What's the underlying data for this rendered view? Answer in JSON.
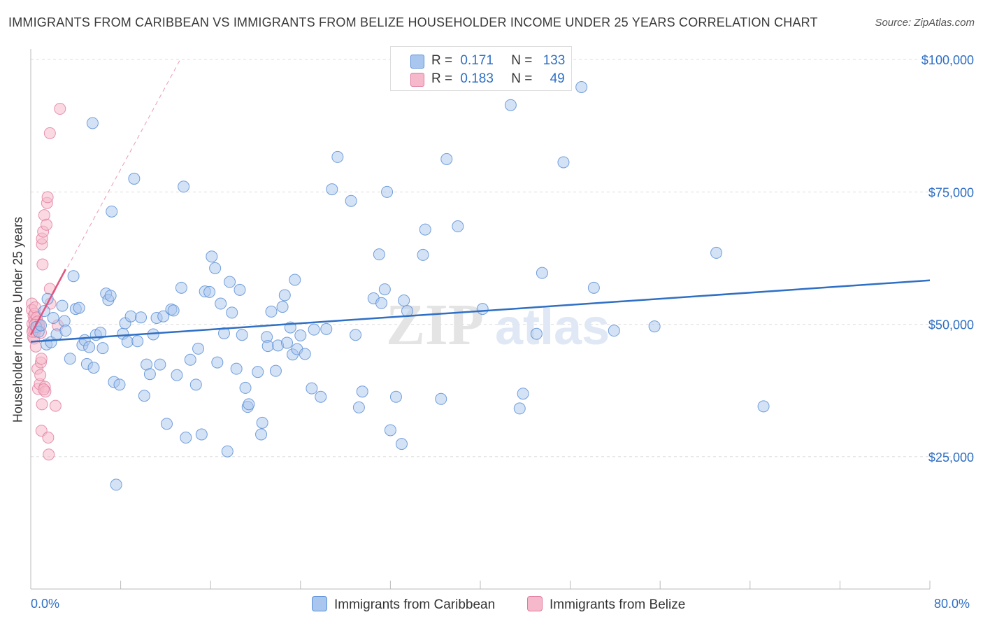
{
  "title": "IMMIGRANTS FROM CARIBBEAN VS IMMIGRANTS FROM BELIZE HOUSEHOLDER INCOME UNDER 25 YEARS CORRELATION CHART",
  "source": "Source: ZipAtlas.com",
  "watermark": "ZIPatlas",
  "legend": {
    "rows": [
      {
        "r_label": "R =",
        "r_value": "0.171",
        "n_label": "N =",
        "n_value": "133"
      },
      {
        "r_label": "R =",
        "r_value": "0.183",
        "n_label": "N =",
        "n_value": "49"
      }
    ]
  },
  "bottom_legend": {
    "series1": "Immigrants from Caribbean",
    "series2": "Immigrants from Belize"
  },
  "colors": {
    "blue_fill": "#a9c6ee",
    "blue_stroke": "#5b8fd6",
    "blue_line": "#2f6fc4",
    "pink_fill": "#f5b9cb",
    "pink_stroke": "#e07a9e",
    "pink_line": "#e0557f",
    "grid": "#dddddd",
    "axis_text": "#2f6fc4"
  },
  "chart_data": {
    "type": "scatter",
    "title": "IMMIGRANTS FROM CARIBBEAN VS IMMIGRANTS FROM BELIZE HOUSEHOLDER INCOME UNDER 25 YEARS CORRELATION CHART",
    "xlabel": "",
    "ylabel": "Householder Income Under 25 years",
    "xlim": [
      0,
      80
    ],
    "ylim": [
      0,
      102000
    ],
    "x_tick_labels": [
      "0.0%",
      "80.0%"
    ],
    "y_ticks": [
      25000,
      50000,
      75000,
      100000
    ],
    "y_tick_labels": [
      "$25,000",
      "$50,000",
      "$75,000",
      "$100,000"
    ],
    "grid": true,
    "legend_position": "top-center",
    "series": [
      {
        "name": "Immigrants from Caribbean",
        "R": 0.171,
        "N": 133,
        "trend": {
          "x": [
            0,
            80
          ],
          "y": [
            46700,
            58300
          ]
        },
        "points": [
          [
            0.5,
            49500
          ],
          [
            0.7,
            48600
          ],
          [
            0.9,
            49800
          ],
          [
            1.2,
            52500
          ],
          [
            1.5,
            54800
          ],
          [
            1.4,
            46200
          ],
          [
            1.8,
            46600
          ],
          [
            2.0,
            51200
          ],
          [
            2.3,
            48100
          ],
          [
            2.8,
            53500
          ],
          [
            3.0,
            50600
          ],
          [
            3.1,
            48800
          ],
          [
            3.5,
            43500
          ],
          [
            3.8,
            59100
          ],
          [
            4.0,
            52900
          ],
          [
            4.3,
            53100
          ],
          [
            4.6,
            46100
          ],
          [
            4.8,
            47000
          ],
          [
            5.0,
            42500
          ],
          [
            5.2,
            45700
          ],
          [
            5.5,
            88000
          ],
          [
            5.6,
            41800
          ],
          [
            5.8,
            48000
          ],
          [
            6.2,
            48400
          ],
          [
            6.4,
            45500
          ],
          [
            6.7,
            55800
          ],
          [
            6.9,
            54600
          ],
          [
            7.1,
            55400
          ],
          [
            7.2,
            71300
          ],
          [
            7.4,
            39100
          ],
          [
            7.6,
            19700
          ],
          [
            7.9,
            38600
          ],
          [
            8.2,
            48200
          ],
          [
            8.4,
            50200
          ],
          [
            8.6,
            46700
          ],
          [
            8.9,
            51500
          ],
          [
            9.2,
            77500
          ],
          [
            9.5,
            46800
          ],
          [
            9.8,
            51300
          ],
          [
            10.1,
            36500
          ],
          [
            10.3,
            42400
          ],
          [
            10.6,
            40600
          ],
          [
            10.9,
            48100
          ],
          [
            11.2,
            51200
          ],
          [
            11.5,
            42400
          ],
          [
            11.8,
            51500
          ],
          [
            12.1,
            31200
          ],
          [
            12.5,
            52800
          ],
          [
            12.7,
            52600
          ],
          [
            13.0,
            40400
          ],
          [
            13.4,
            56900
          ],
          [
            13.6,
            76000
          ],
          [
            13.8,
            28600
          ],
          [
            14.2,
            43300
          ],
          [
            14.7,
            38600
          ],
          [
            14.9,
            45400
          ],
          [
            15.2,
            29200
          ],
          [
            15.5,
            56200
          ],
          [
            15.9,
            56100
          ],
          [
            16.1,
            62800
          ],
          [
            16.4,
            60600
          ],
          [
            16.6,
            42800
          ],
          [
            16.9,
            53900
          ],
          [
            17.2,
            48300
          ],
          [
            17.5,
            26000
          ],
          [
            17.7,
            58000
          ],
          [
            17.9,
            52200
          ],
          [
            18.3,
            41600
          ],
          [
            18.6,
            56500
          ],
          [
            18.8,
            48000
          ],
          [
            19.1,
            38000
          ],
          [
            19.3,
            34400
          ],
          [
            19.4,
            34900
          ],
          [
            20.2,
            41000
          ],
          [
            20.5,
            29200
          ],
          [
            20.6,
            31400
          ],
          [
            21.0,
            47600
          ],
          [
            21.1,
            45900
          ],
          [
            21.4,
            52400
          ],
          [
            21.8,
            41200
          ],
          [
            22.0,
            46000
          ],
          [
            22.4,
            53300
          ],
          [
            22.6,
            55500
          ],
          [
            22.8,
            46500
          ],
          [
            23.1,
            49400
          ],
          [
            23.3,
            44300
          ],
          [
            23.5,
            58400
          ],
          [
            23.7,
            45300
          ],
          [
            24.0,
            47900
          ],
          [
            24.4,
            44400
          ],
          [
            25.0,
            37900
          ],
          [
            25.2,
            49000
          ],
          [
            25.8,
            36300
          ],
          [
            26.3,
            49100
          ],
          [
            26.8,
            75500
          ],
          [
            27.3,
            81600
          ],
          [
            28.5,
            73300
          ],
          [
            28.9,
            48000
          ],
          [
            29.2,
            34300
          ],
          [
            29.5,
            37300
          ],
          [
            30.5,
            54900
          ],
          [
            31.0,
            63200
          ],
          [
            31.2,
            54000
          ],
          [
            31.5,
            56600
          ],
          [
            31.7,
            75000
          ],
          [
            32.0,
            30000
          ],
          [
            32.5,
            36300
          ],
          [
            33.0,
            27400
          ],
          [
            33.2,
            54500
          ],
          [
            33.5,
            52500
          ],
          [
            34.9,
            63100
          ],
          [
            35.1,
            67900
          ],
          [
            36.5,
            35900
          ],
          [
            37.0,
            81200
          ],
          [
            38.0,
            68500
          ],
          [
            40.2,
            52900
          ],
          [
            42.7,
            91400
          ],
          [
            43.5,
            34100
          ],
          [
            43.8,
            36900
          ],
          [
            45.0,
            48200
          ],
          [
            45.5,
            59700
          ],
          [
            47.4,
            80600
          ],
          [
            49.0,
            94800
          ],
          [
            50.1,
            56900
          ],
          [
            51.9,
            48800
          ],
          [
            55.5,
            49600
          ],
          [
            61.0,
            63500
          ],
          [
            65.2,
            34500
          ]
        ]
      },
      {
        "name": "Immigrants from Belize",
        "R": 0.183,
        "N": 49,
        "trend": {
          "x": [
            0,
            3.1
          ],
          "y": [
            48000,
            60400
          ]
        },
        "trend_extended": {
          "x": [
            0,
            13.3
          ],
          "y": [
            48000,
            100000
          ]
        },
        "points": [
          [
            0.1,
            53900
          ],
          [
            0.1,
            52700
          ],
          [
            0.15,
            50100
          ],
          [
            0.2,
            48900
          ],
          [
            0.2,
            47600
          ],
          [
            0.25,
            51600
          ],
          [
            0.3,
            50700
          ],
          [
            0.3,
            49200
          ],
          [
            0.3,
            47300
          ],
          [
            0.35,
            52000
          ],
          [
            0.4,
            53200
          ],
          [
            0.4,
            48600
          ],
          [
            0.45,
            45800
          ],
          [
            0.5,
            50300
          ],
          [
            0.5,
            49100
          ],
          [
            0.55,
            51300
          ],
          [
            0.6,
            50500
          ],
          [
            0.6,
            41600
          ],
          [
            0.65,
            37800
          ],
          [
            0.7,
            49600
          ],
          [
            0.8,
            38700
          ],
          [
            0.85,
            40400
          ],
          [
            0.9,
            42800
          ],
          [
            0.95,
            43500
          ],
          [
            0.95,
            29900
          ],
          [
            1.0,
            65100
          ],
          [
            1.0,
            66200
          ],
          [
            1.05,
            61300
          ],
          [
            1.1,
            67500
          ],
          [
            1.2,
            70600
          ],
          [
            1.25,
            38200
          ],
          [
            1.3,
            37300
          ],
          [
            1.4,
            68800
          ],
          [
            1.45,
            72900
          ],
          [
            1.5,
            74000
          ],
          [
            1.55,
            28600
          ],
          [
            1.6,
            25400
          ],
          [
            1.7,
            56700
          ],
          [
            1.7,
            86100
          ],
          [
            1.75,
            53900
          ],
          [
            2.6,
            90700
          ],
          [
            0.75,
            49900
          ],
          [
            0.9,
            48400
          ],
          [
            0.15,
            48600
          ],
          [
            0.35,
            49900
          ],
          [
            1.0,
            34900
          ],
          [
            2.2,
            34600
          ],
          [
            2.4,
            49800
          ],
          [
            1.15,
            37700
          ]
        ]
      }
    ]
  }
}
